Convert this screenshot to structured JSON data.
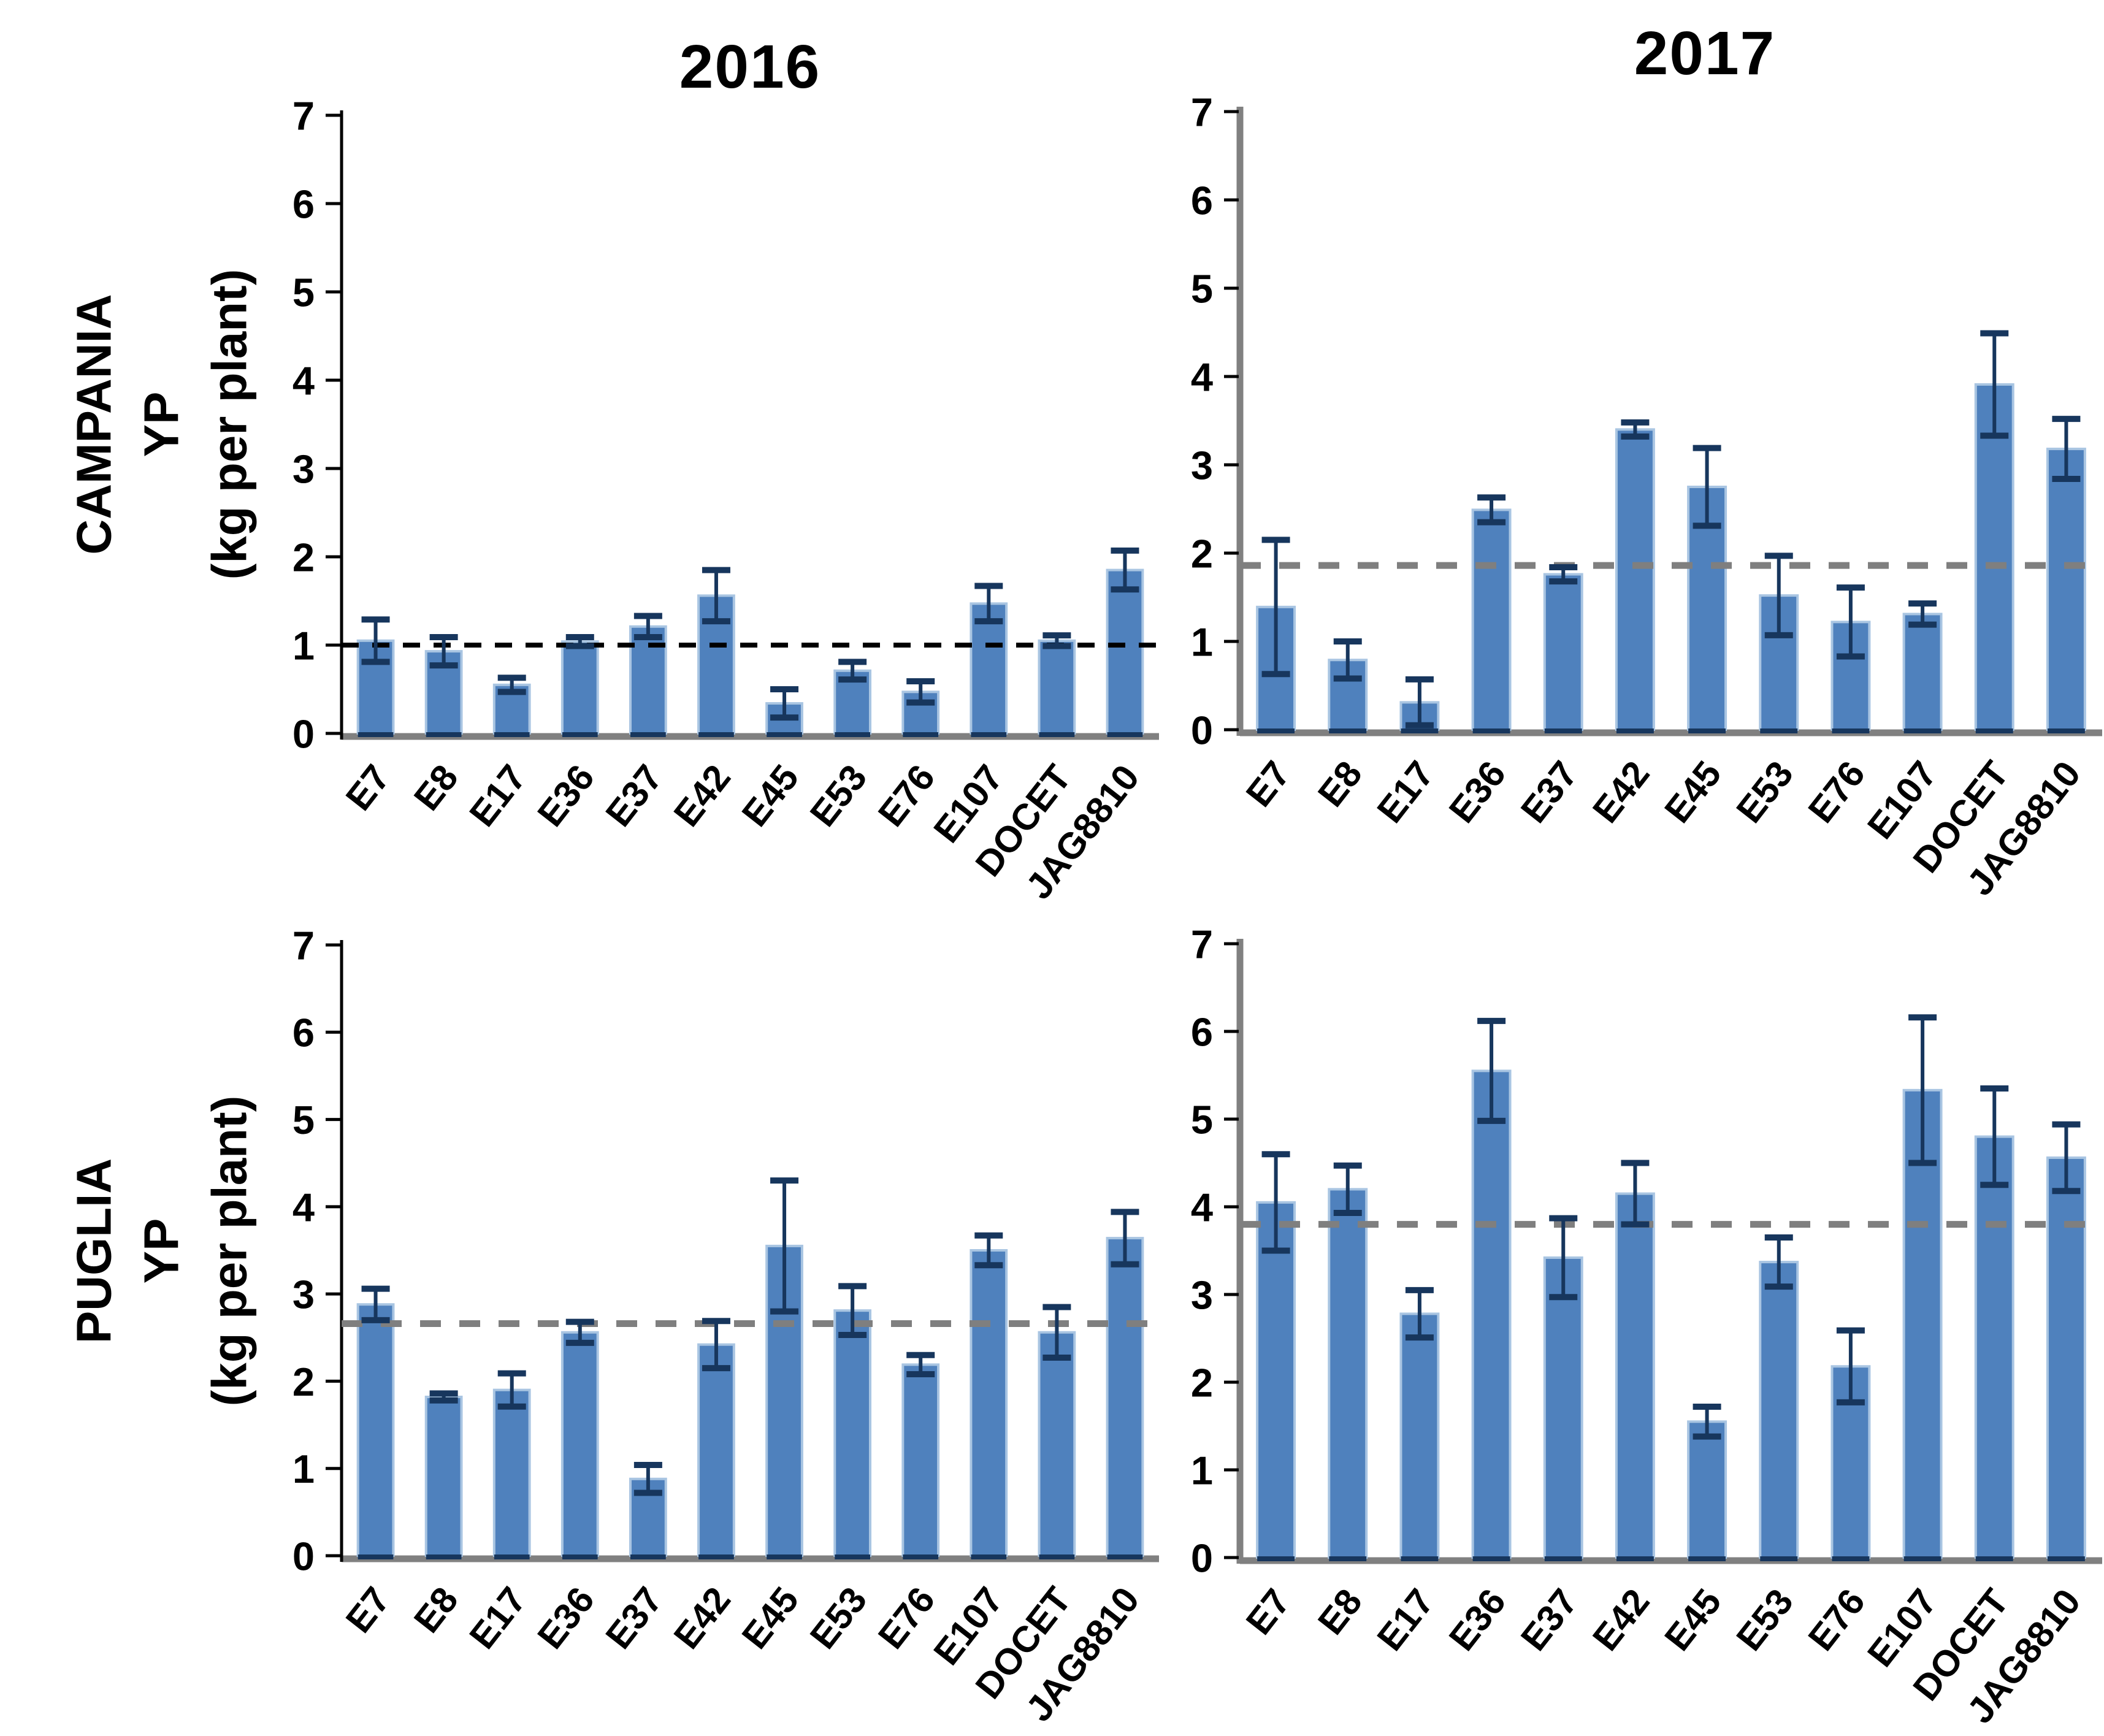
{
  "figure": {
    "background": "#FFFFFF",
    "col_titles": [
      "2016",
      "2017"
    ],
    "row_labels": [
      {
        "region": "CAMPANIA",
        "metric": "YP",
        "unit": "(kg per plant)"
      },
      {
        "region": "PUGLIA",
        "metric": "YP",
        "unit": "(kg per plant)"
      }
    ],
    "colors": {
      "bar_fill": "#4F81BD",
      "bar_edge": "#A9C5E2",
      "bar_bottom_edge": "#17365D",
      "error_bar": "#17365D",
      "axis_black": "#000000",
      "axis_gray": "#808080",
      "baseline": "#808080",
      "tick_text": "#000000"
    }
  },
  "chart_data": [
    {
      "panel": "campania-2016",
      "type": "bar",
      "region": "CAMPANIA",
      "year": "2016",
      "title": "2016",
      "ylabel": "YP (kg per plant)",
      "ylim": [
        0,
        7
      ],
      "yticks": [
        0,
        1,
        2,
        3,
        4,
        5,
        6,
        7
      ],
      "grid": false,
      "categories": [
        "E7",
        "E8",
        "E17",
        "E36",
        "E37",
        "E42",
        "E45",
        "E53",
        "E76",
        "E107",
        "DOCET",
        "JAG8810"
      ],
      "values": [
        1.05,
        0.93,
        0.55,
        1.04,
        1.21,
        1.56,
        0.34,
        0.71,
        0.47,
        1.47,
        1.05,
        1.85
      ],
      "errors": [
        0.24,
        0.16,
        0.08,
        0.05,
        0.12,
        0.29,
        0.16,
        0.1,
        0.12,
        0.2,
        0.06,
        0.22
      ],
      "mean_line": 1.0,
      "mean_line_color": "#000000",
      "y_axis_color": "#000000"
    },
    {
      "panel": "campania-2017",
      "type": "bar",
      "region": "CAMPANIA",
      "year": "2017",
      "title": "2017",
      "ylabel": "YP (kg per plant)",
      "ylim": [
        0,
        7
      ],
      "yticks": [
        0,
        1,
        2,
        3,
        4,
        5,
        6,
        7
      ],
      "grid": false,
      "categories": [
        "E7",
        "E8",
        "E17",
        "E36",
        "E37",
        "E42",
        "E45",
        "E53",
        "E76",
        "E107",
        "DOCET",
        "JAG8810"
      ],
      "values": [
        1.39,
        0.79,
        0.31,
        2.49,
        1.76,
        3.4,
        2.75,
        1.52,
        1.22,
        1.31,
        3.91,
        3.18
      ],
      "errors": [
        0.76,
        0.21,
        0.26,
        0.14,
        0.08,
        0.08,
        0.44,
        0.45,
        0.39,
        0.12,
        0.58,
        0.34
      ],
      "mean_line": 1.86,
      "mean_line_color": "#7F7F7F",
      "y_axis_color": "#808080"
    },
    {
      "panel": "puglia-2016",
      "type": "bar",
      "region": "PUGLIA",
      "year": "2016",
      "title": "2016",
      "ylabel": "YP (kg per plant)",
      "ylim": [
        0,
        7
      ],
      "yticks": [
        0,
        1,
        2,
        3,
        4,
        5,
        6,
        7
      ],
      "grid": false,
      "categories": [
        "E7",
        "E8",
        "E17",
        "E36",
        "E37",
        "E42",
        "E45",
        "E53",
        "E76",
        "E107",
        "DOCET",
        "JAG8810"
      ],
      "values": [
        2.88,
        1.82,
        1.9,
        2.56,
        0.88,
        2.42,
        3.55,
        2.81,
        2.19,
        3.5,
        2.56,
        3.64
      ],
      "errors": [
        0.18,
        0.04,
        0.19,
        0.12,
        0.16,
        0.27,
        0.75,
        0.28,
        0.11,
        0.17,
        0.29,
        0.3
      ],
      "mean_line": 2.66,
      "mean_line_color": "#7F7F7F",
      "y_axis_color": "#000000"
    },
    {
      "panel": "puglia-2017",
      "type": "bar",
      "region": "PUGLIA",
      "year": "2017",
      "title": "2017",
      "ylabel": "YP (kg per plant)",
      "ylim": [
        0,
        7
      ],
      "yticks": [
        0,
        1,
        2,
        3,
        4,
        5,
        6,
        7
      ],
      "grid": false,
      "categories": [
        "E7",
        "E8",
        "E17",
        "E36",
        "E37",
        "E42",
        "E45",
        "E53",
        "E76",
        "E107",
        "DOCET",
        "JAG8810"
      ],
      "values": [
        4.05,
        4.2,
        2.78,
        5.55,
        3.42,
        4.15,
        1.55,
        3.37,
        2.18,
        5.33,
        4.8,
        4.56
      ],
      "errors": [
        0.55,
        0.27,
        0.27,
        0.57,
        0.45,
        0.35,
        0.17,
        0.28,
        0.41,
        0.83,
        0.55,
        0.38
      ],
      "mean_line": 3.8,
      "mean_line_color": "#7F7F7F",
      "y_axis_color": "#808080"
    }
  ]
}
